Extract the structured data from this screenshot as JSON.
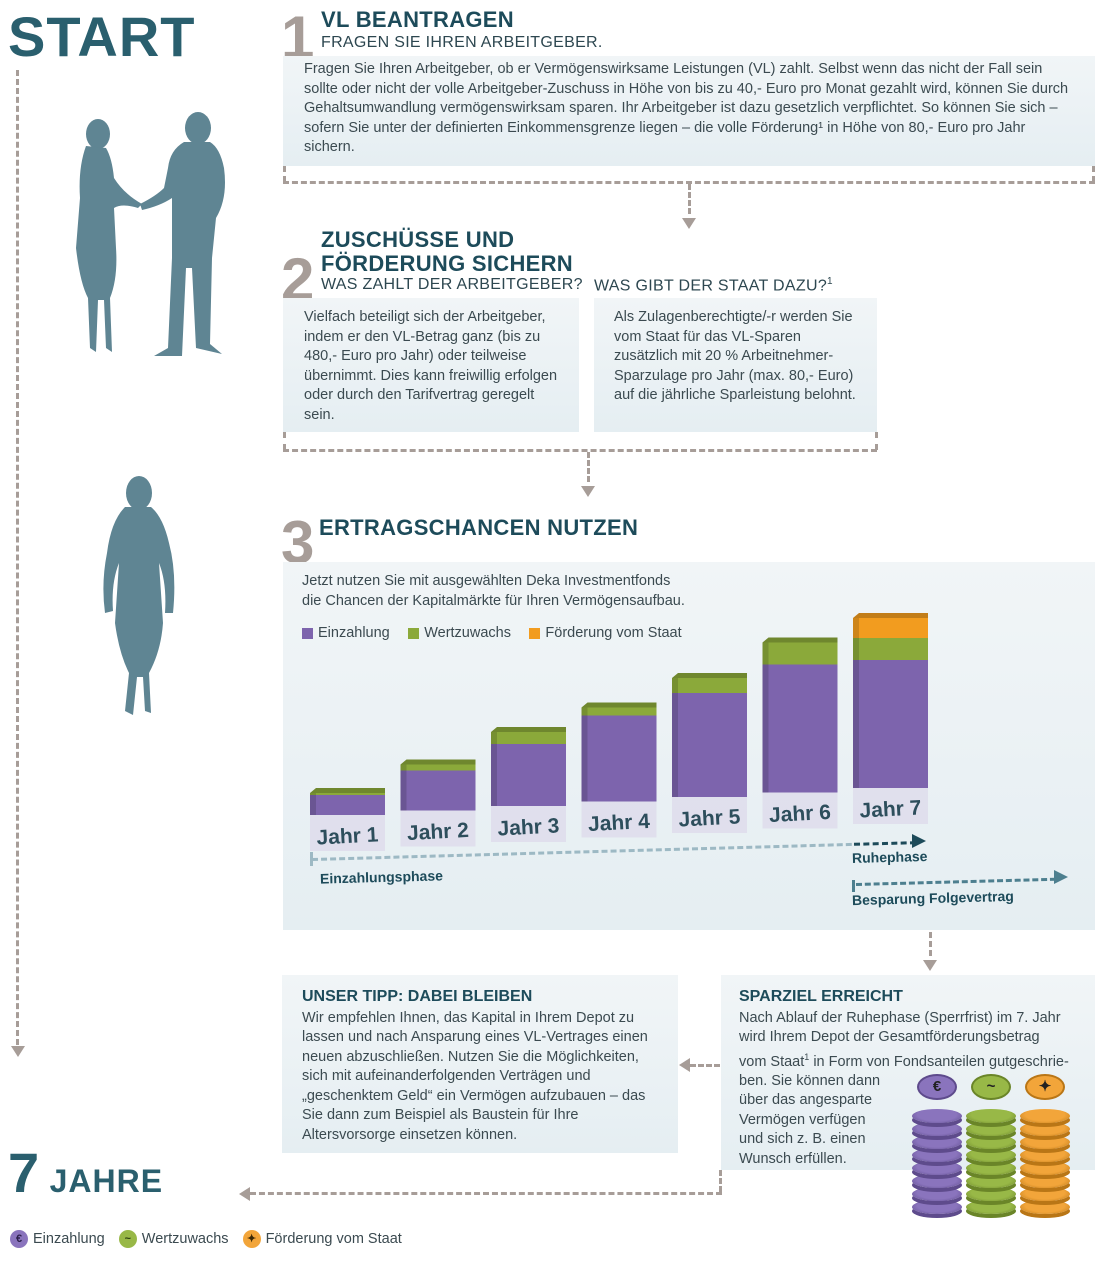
{
  "start_label": "START",
  "end": {
    "number": "7",
    "word": "JAHRE"
  },
  "step1": {
    "number": "1",
    "title": "VL BEANTRAGEN",
    "subtitle": "FRAGEN SIE IHREN ARBEITGEBER.",
    "text": "Fragen Sie Ihren Arbeitgeber, ob er Vermögenswirksame Leistungen (VL) zahlt. Selbst wenn das nicht der Fall sein sollte oder nicht der volle Arbeitgeber-Zuschuss in Höhe von bis zu 40,- Euro pro Monat  gezahlt wird, können Sie durch Gehaltsumwandlung vermögenswirksam sparen. Ihr Arbeitgeber ist dazu gesetzlich verpflichtet. So können Sie sich – sofern Sie unter der definierten Einkommensgrenze liegen – die volle Förderung¹ in Höhe von 80,- Euro pro Jahr sichern."
  },
  "step2": {
    "number": "2",
    "title_line1": "ZUSCHÜSSE UND",
    "title_line2": "FÖRDERUNG SICHERN",
    "sub_left": "WAS ZAHLT DER ARBEITGEBER?",
    "sub_right": "WAS GIBT DER STAAT DAZU?",
    "sub_right_sup": "1",
    "text_left": "Vielfach beteiligt sich der Arbeitgeber, indem er den VL-Betrag ganz (bis zu 480,- Euro pro Jahr) oder teilweise übernimmt. Dies kann freiwillig erfolgen oder durch den Tarifvertrag geregelt sein.",
    "text_right": "Als Zulagenberechtigte/-r werden Sie vom Staat für das VL-Sparen zusätzlich mit 20 % Arbeitnehmer-Sparzulage pro Jahr (max. 80,- Euro) auf die jährliche Sparleistung belohnt."
  },
  "step3": {
    "number": "3",
    "title": "ERTRAGSCHANCEN NUTZEN",
    "text_line1": "Jetzt nutzen Sie mit ausgewählten Deka Investmentfonds",
    "text_line2": "die Chancen der Kapitalmärkte für Ihren Vermögensaufbau.",
    "phase_payment": "Einzahlungsphase",
    "phase_rest": "Ruhephase",
    "phase_follow": "Besparung Folgevertrag"
  },
  "chart_data": {
    "type": "bar",
    "stacked": true,
    "categories": [
      "Jahr 1",
      "Jahr 2",
      "Jahr 3",
      "Jahr 4",
      "Jahr 5",
      "Jahr 6",
      "Jahr 7"
    ],
    "series": [
      {
        "name": "Einzahlung",
        "color": "#7d64ad",
        "values": [
          20,
          40,
          62,
          86,
          104,
          128,
          128
        ]
      },
      {
        "name": "Wertzuwachs",
        "color": "#8ba93a",
        "values": [
          2,
          6,
          12,
          8,
          15,
          22,
          22
        ]
      },
      {
        "name": "Förderung vom Staat",
        "color": "#f29c1f",
        "values": [
          0,
          0,
          0,
          0,
          0,
          0,
          20
        ]
      }
    ]
  },
  "tip": {
    "title": "UNSER TIPP: DABEI BLEIBEN",
    "text": "Wir empfehlen Ihnen, das Kapital in Ihrem Depot zu lassen und nach Ansparung eines VL-Vertrages einen neuen abzuschließen. Nutzen Sie die Möglichkeiten, sich mit aufeinanderfolgenden Verträgen und „geschenktem Geld“ ein Vermögen aufzubauen – das Sie dann zum Beispiel als Baustein für Ihre Altersvorsorge einsetzen können."
  },
  "goal": {
    "title": "SPARZIEL ERREICHT",
    "text_line1": "Nach Ablauf der Ruhephase (Sperrfrist) im 7. Jahr",
    "text_line2": "wird Ihrem Depot der Gesamtförderungsbetrag",
    "text_line3a": "vom Staat",
    "text_line3_sup": "1",
    "text_line3b": " in Form von Fondsanteilen gutgeschrie-",
    "text_line4": "ben. Sie können dann",
    "text_line5": "über das angesparte",
    "text_line6": "Vermögen verfügen",
    "text_line7": "und sich z. B. einen",
    "text_line8": "Wunsch erfüllen."
  },
  "bottom_legend": [
    {
      "icon": "euro-coin-icon",
      "symbol": "€",
      "label": "Einzahlung",
      "color": "#8a74bd"
    },
    {
      "icon": "growth-coin-icon",
      "symbol": "~",
      "label": "Wertzuwachs",
      "color": "#98b847"
    },
    {
      "icon": "eagle-coin-icon",
      "symbol": "✦",
      "label": "Förderung vom Staat",
      "color": "#f2a53a"
    }
  ],
  "colors": {
    "accent": "#1d4b5a",
    "dash": "#a79d98",
    "silhouette": "#5f8593"
  }
}
